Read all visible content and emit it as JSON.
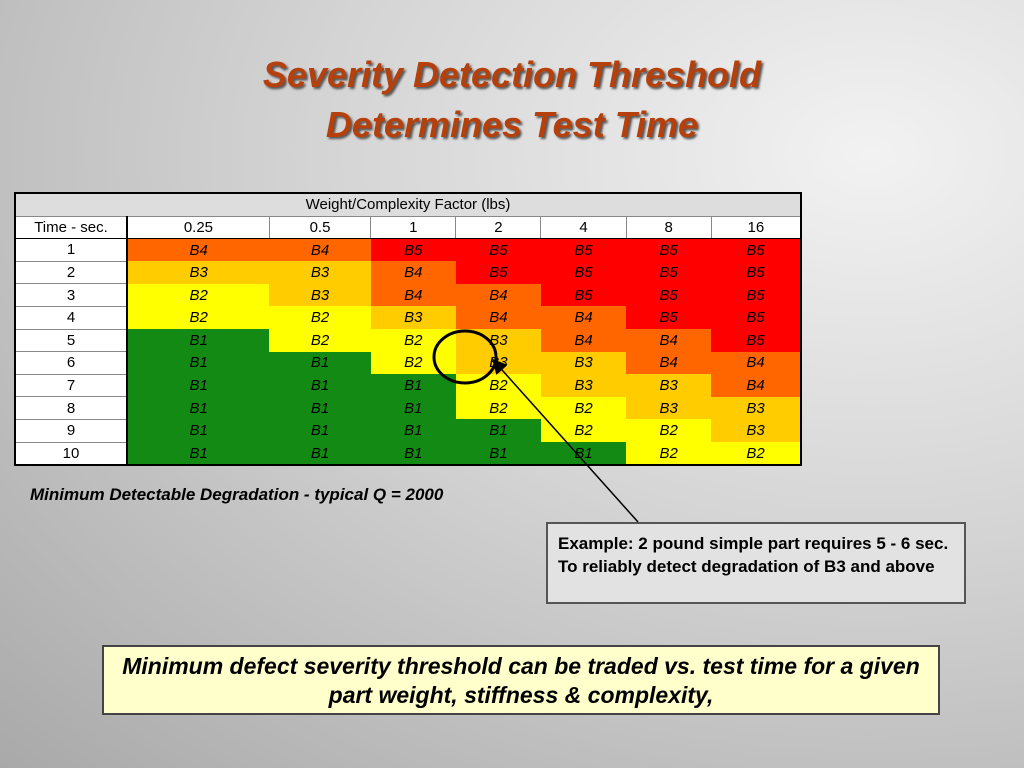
{
  "title": [
    "Severity Detection Threshold",
    "Determines Test Time"
  ],
  "table": {
    "group_header": "Weight/Complexity Factor (lbs)",
    "row_header": "Time - sec.",
    "columns": [
      "0.25",
      "0.5",
      "1",
      "2",
      "4",
      "8",
      "16"
    ],
    "row_labels": [
      "1",
      "2",
      "3",
      "4",
      "5",
      "6",
      "7",
      "8",
      "9",
      "10"
    ],
    "rows": [
      [
        "B4",
        "B4",
        "B5",
        "B5",
        "B5",
        "B5",
        "B5"
      ],
      [
        "B3",
        "B3",
        "B4",
        "B5",
        "B5",
        "B5",
        "B5"
      ],
      [
        "B2",
        "B3",
        "B4",
        "B4",
        "B5",
        "B5",
        "B5"
      ],
      [
        "B2",
        "B2",
        "B3",
        "B4",
        "B4",
        "B5",
        "B5"
      ],
      [
        "B1",
        "B2",
        "B2",
        "B3",
        "B4",
        "B4",
        "B5"
      ],
      [
        "B1",
        "B1",
        "B2",
        "B3",
        "B3",
        "B4",
        "B4"
      ],
      [
        "B1",
        "B1",
        "B1",
        "B2",
        "B3",
        "B3",
        "B4"
      ],
      [
        "B1",
        "B1",
        "B1",
        "B2",
        "B2",
        "B3",
        "B3"
      ],
      [
        "B1",
        "B1",
        "B1",
        "B1",
        "B2",
        "B2",
        "B3"
      ],
      [
        "B1",
        "B1",
        "B1",
        "B1",
        "B1",
        "B2",
        "B2"
      ]
    ],
    "level_colors": {
      "B1": "#138a13",
      "B2": "#ffff00",
      "B3": "#ffcc00",
      "B4": "#ff6600",
      "B5": "#ff0000"
    }
  },
  "caption": "Minimum Detectable Degradation - typical Q = 2000",
  "example": "Example: 2 pound simple part requires 5 - 6 sec. To reliably detect degradation of B3 and above",
  "conclusion": "Minimum defect severity threshold can be traded vs. test time for a given part weight, stiffness & complexity,"
}
